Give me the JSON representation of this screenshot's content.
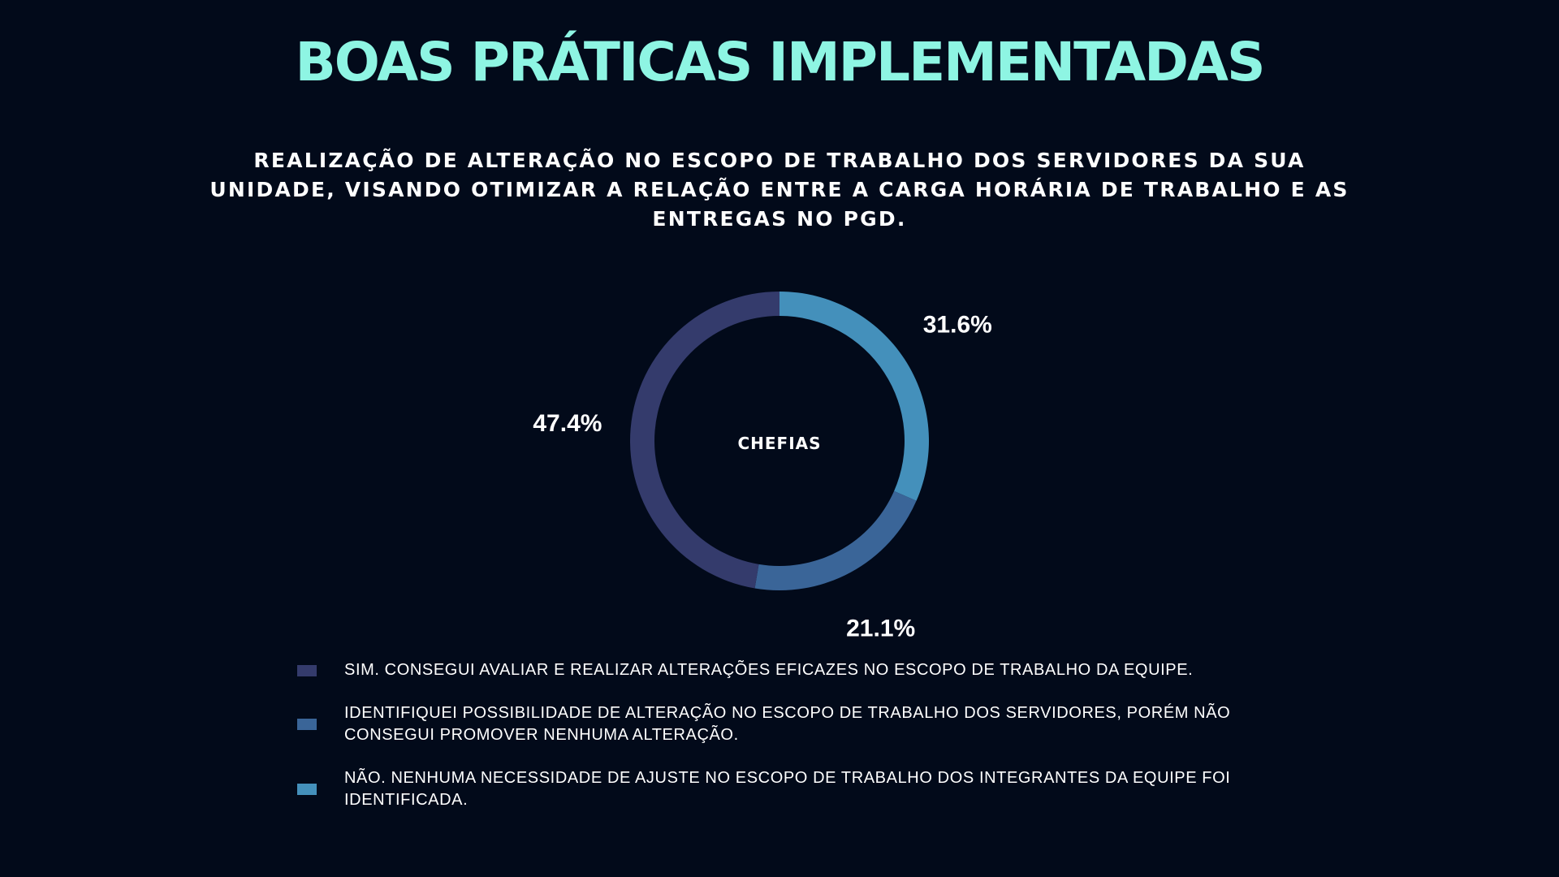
{
  "slide": {
    "title": "BOAS PRÁTICAS IMPLEMENTADAS",
    "subtitle": "REALIZAÇÃO DE ALTERAÇÃO NO ESCOPO DE TRABALHO DOS SERVIDORES DA SUA UNIDADE, VISANDO OTIMIZAR A RELAÇÃO ENTRE A CARGA HORÁRIA DE TRABALHO E AS ENTREGAS NO PGD."
  },
  "colors": {
    "background": "#020a1a",
    "title": "#8ef5e3"
  },
  "chart_data": {
    "type": "pie",
    "variant": "donut",
    "center_label": "CHEFIAS",
    "legend_position": "bottom",
    "slices": [
      {
        "label": "NÃO. NENHUMA NECESSIDADE DE AJUSTE NO ESCOPO DE TRABALHO DOS INTEGRANTES DA EQUIPE FOI IDENTIFICADA.",
        "value": 31.6,
        "display": "31.6%",
        "color": "#4490bb"
      },
      {
        "label": "IDENTIFIQUEI POSSIBILIDADE DE ALTERAÇÃO NO ESCOPO DE TRABALHO DOS SERVIDORES, PORÉM NÃO CONSEGUI PROMOVER NENHUMA ALTERAÇÃO.",
        "value": 21.1,
        "display": "21.1%",
        "color": "#3a6598"
      },
      {
        "label": "SIM. CONSEGUI AVALIAR E REALIZAR ALTERAÇÕES EFICAZES NO ESCOPO DE TRABALHO DA EQUIPE.",
        "value": 47.4,
        "display": "47.4%",
        "color": "#343b6c"
      }
    ],
    "legend_order": [
      2,
      1,
      0
    ]
  }
}
